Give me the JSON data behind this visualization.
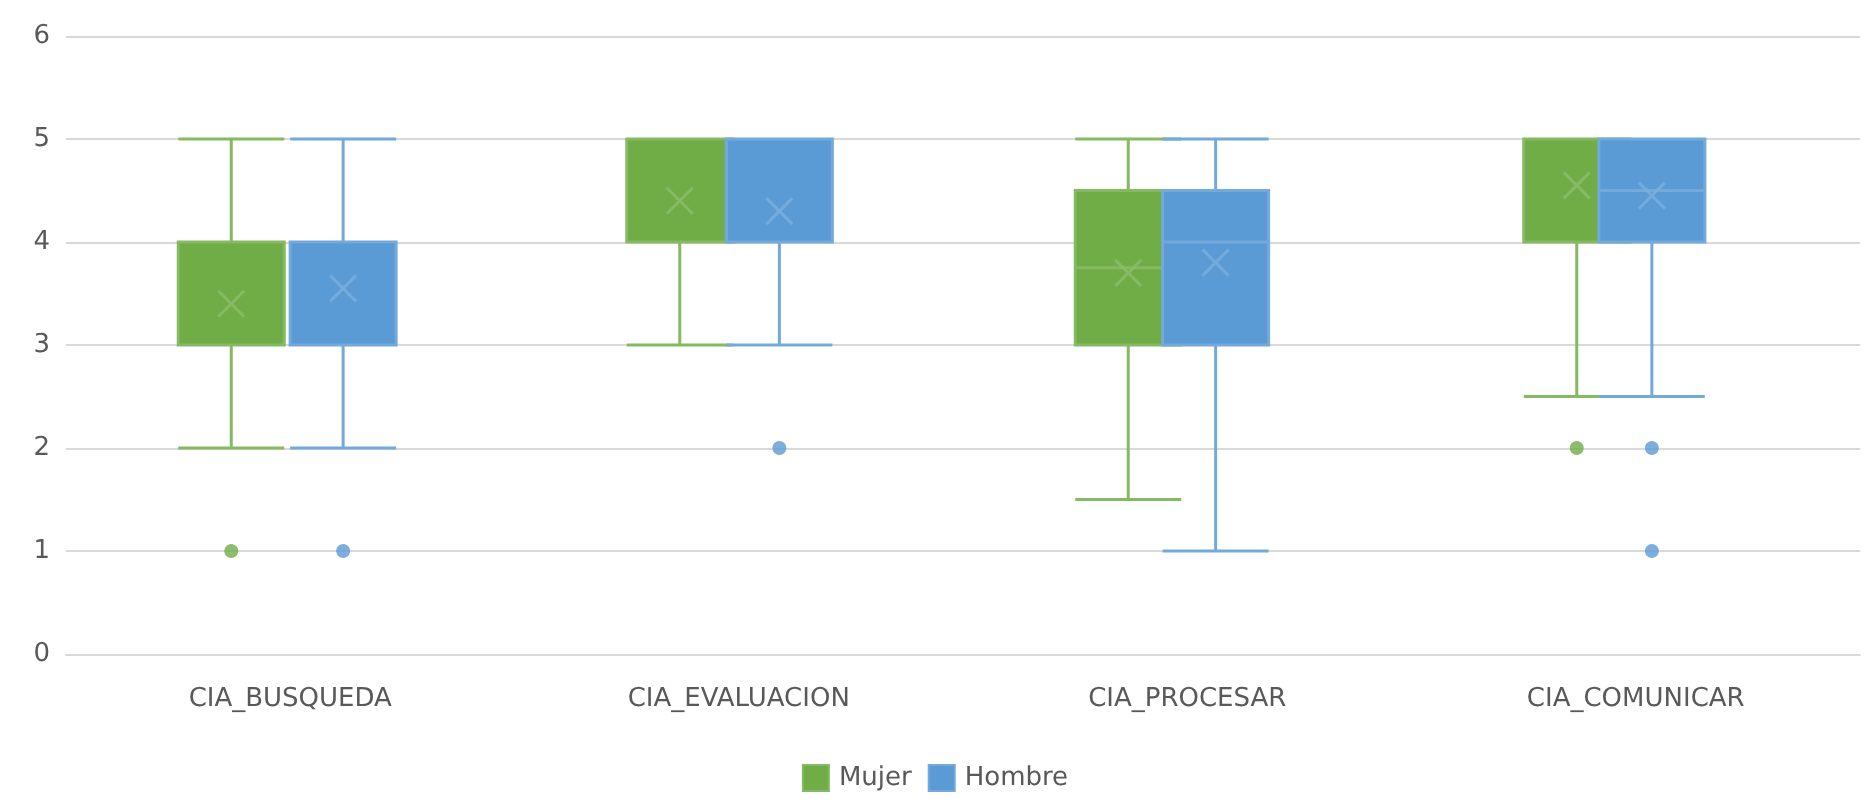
{
  "chart_data": {
    "type": "box",
    "categories": [
      "CIA_BUSQUEDA",
      "CIA_EVALUACION",
      "CIA_PROCESAR",
      "CIA_COMUNICAR"
    ],
    "series": [
      {
        "name": "Mujer",
        "color": "#70ad47",
        "boxes": [
          {
            "low": 2,
            "q1": 3,
            "median": 3,
            "q3": 4,
            "high": 5,
            "mean": 3.4,
            "outliers": [
              1
            ]
          },
          {
            "low": 3,
            "q1": 4,
            "median": 4,
            "q3": 5,
            "high": 5,
            "mean": 4.4
          },
          {
            "low": 1.5,
            "q1": 3,
            "median": 3.75,
            "q3": 4.5,
            "high": 5,
            "mean": 3.7
          },
          {
            "low": 2.5,
            "q1": 4,
            "median": 5,
            "q3": 5,
            "high": 5,
            "mean": 4.55,
            "outliers": [
              2
            ]
          }
        ]
      },
      {
        "name": "Hombre",
        "color": "#5b9bd5",
        "boxes": [
          {
            "low": 2,
            "q1": 3,
            "median": 4,
            "q3": 4,
            "high": 5,
            "mean": 3.55,
            "outliers": [
              1
            ]
          },
          {
            "low": 3,
            "q1": 4,
            "median": 4,
            "q3": 5,
            "high": 5,
            "mean": 4.3,
            "outliers": [
              2
            ]
          },
          {
            "low": 1,
            "q1": 3,
            "median": 4,
            "q3": 4.5,
            "high": 5,
            "mean": 3.8
          },
          {
            "low": 2.5,
            "q1": 4,
            "median": 4.5,
            "q3": 5,
            "high": 5,
            "mean": 4.45,
            "outliers": [
              2,
              1
            ]
          }
        ]
      }
    ],
    "ylim": [
      0,
      6
    ],
    "yticks": [
      0,
      1,
      2,
      3,
      4,
      5,
      6
    ],
    "grid": "y",
    "legend": "bottom"
  }
}
